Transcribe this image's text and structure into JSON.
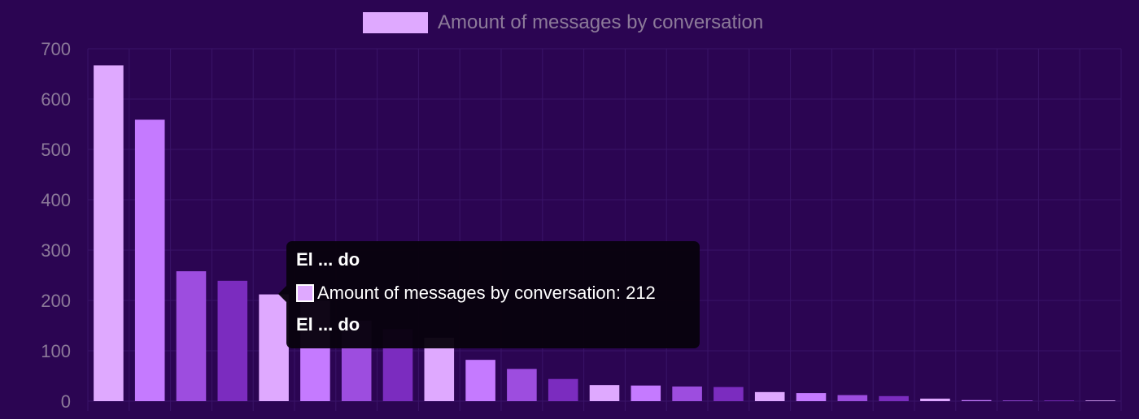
{
  "colors": {
    "background": "#2b0552",
    "grid": "#3a1468",
    "axis_text": "#8c7a99",
    "legend_swatch": "#dfa9ff",
    "tooltip_bg": "#08020e",
    "bar_palette": [
      "#dfa9ff",
      "#c57aff",
      "#9d4ddf",
      "#7b2cbf"
    ]
  },
  "legend": {
    "label": "Amount of messages by conversation"
  },
  "tooltip": {
    "title": "El ... do",
    "body": "Amount of messages by conversation: 212",
    "footer": "El ... do"
  },
  "chart_data": {
    "type": "bar",
    "title": "",
    "xlabel": "",
    "ylabel": "",
    "ylim": [
      0,
      700
    ],
    "yticks": [
      0,
      100,
      200,
      300,
      400,
      500,
      600,
      700
    ],
    "grid": true,
    "legend_position": "top",
    "series": [
      {
        "name": "Amount of messages by conversation",
        "values": [
          667,
          559,
          258,
          239,
          212,
          200,
          160,
          143,
          126,
          82,
          64,
          44,
          32,
          31,
          29,
          28,
          18,
          16,
          12,
          10,
          5,
          2,
          1,
          1,
          1
        ]
      }
    ]
  }
}
